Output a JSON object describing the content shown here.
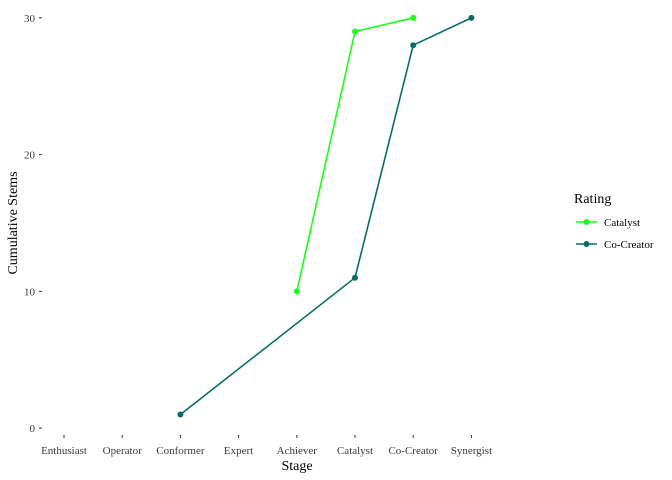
{
  "chart_data": {
    "type": "line",
    "title": "",
    "xlabel": "Stage",
    "ylabel": "Cumulative Stems",
    "categories": [
      "Enthusiast",
      "Operator",
      "Conformer",
      "Expert",
      "Achiever",
      "Catalyst",
      "Co-Creator",
      "Synergist"
    ],
    "yticks": [
      0,
      10,
      20,
      30
    ],
    "ylim": [
      -0.5,
      30.5
    ],
    "grid": false,
    "legend": {
      "title": "Rating",
      "placement": "right"
    },
    "series": [
      {
        "name": "Catalyst",
        "color": "#1aff1a",
        "points": [
          {
            "x": "Achiever",
            "y": 10
          },
          {
            "x": "Catalyst",
            "y": 29
          },
          {
            "x": "Co-Creator",
            "y": 30
          }
        ]
      },
      {
        "name": "Co-Creator",
        "color": "#0d6b6b",
        "points": [
          {
            "x": "Conformer",
            "y": 1
          },
          {
            "x": "Catalyst",
            "y": 11
          },
          {
            "x": "Co-Creator",
            "y": 28
          },
          {
            "x": "Synergist",
            "y": 30
          }
        ]
      }
    ]
  }
}
